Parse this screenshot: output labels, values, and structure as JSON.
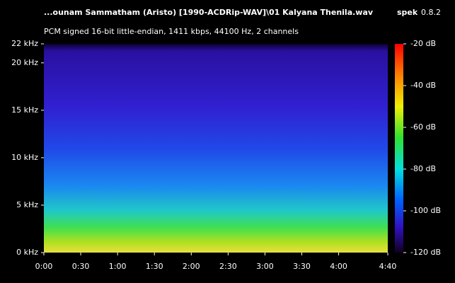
{
  "chart_data": {
    "type": "spectrogram",
    "title": "...ounam Sammatham (Aristo) [1990-ACDRip-WAV]\\01 Kalyana Thenila.wav",
    "subtitle": "PCM signed 16-bit little-endian, 1411 kbps, 44100 Hz, 2 channels",
    "app": "spek",
    "version": "0.8.2",
    "xlim": [
      0,
      280
    ],
    "xticks": [
      {
        "value": 0,
        "label": "0:00"
      },
      {
        "value": 30,
        "label": "0:30"
      },
      {
        "value": 60,
        "label": "1:00"
      },
      {
        "value": 90,
        "label": "1:30"
      },
      {
        "value": 120,
        "label": "2:00"
      },
      {
        "value": 150,
        "label": "2:30"
      },
      {
        "value": 180,
        "label": "3:00"
      },
      {
        "value": 210,
        "label": "3:30"
      },
      {
        "value": 240,
        "label": "4:00"
      },
      {
        "value": 280,
        "label": "4:40"
      }
    ],
    "ylim": [
      0,
      22
    ],
    "yticks": [
      {
        "value": 0,
        "label": "0 kHz"
      },
      {
        "value": 5,
        "label": "5 kHz"
      },
      {
        "value": 10,
        "label": "10 kHz"
      },
      {
        "value": 15,
        "label": "15 kHz"
      },
      {
        "value": 20,
        "label": "20 kHz"
      },
      {
        "value": 22,
        "label": "22 kHz"
      }
    ],
    "clim": [
      -120,
      -20
    ],
    "cticks": [
      {
        "value": -20,
        "label": "-20 dB"
      },
      {
        "value": -40,
        "label": "-40 dB"
      },
      {
        "value": -60,
        "label": "-60 dB"
      },
      {
        "value": -80,
        "label": "-80 dB"
      },
      {
        "value": -100,
        "label": "-100 dB"
      },
      {
        "value": -120,
        "label": "-120 dB"
      }
    ]
  }
}
